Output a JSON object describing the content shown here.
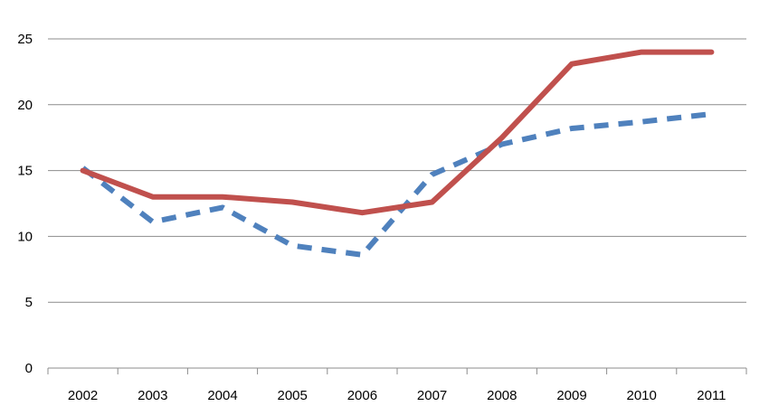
{
  "chart_data": {
    "type": "line",
    "x": [
      "2002",
      "2003",
      "2004",
      "2005",
      "2006",
      "2007",
      "2008",
      "2009",
      "2010",
      "2011"
    ],
    "ylim": [
      0,
      25
    ],
    "yticks": [
      "0",
      "5",
      "10",
      "15",
      "20",
      "25"
    ],
    "grid": true,
    "legend": "none",
    "series": [
      {
        "color": "#c0504d",
        "style": "solid",
        "values": [
          15,
          13,
          13,
          12.6,
          11.8,
          12.6,
          17.5,
          23.1,
          24,
          24
        ]
      },
      {
        "color": "#4f81bd",
        "style": "dashed",
        "values": [
          15.2,
          11.1,
          12.2,
          9.3,
          8.6,
          14.7,
          17,
          18.2,
          18.7,
          19.3
        ]
      }
    ]
  }
}
